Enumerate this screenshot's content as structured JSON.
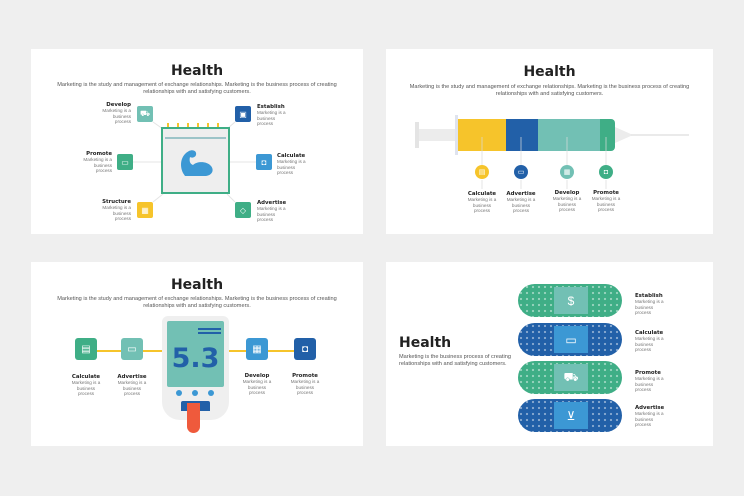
{
  "colors": {
    "green": "#3fae86",
    "teal": "#72c0b4",
    "blue": "#2260a8",
    "lightblue": "#3c98d4",
    "yellow": "#f6c42b",
    "red": "#ef5a3c"
  },
  "slide1": {
    "title": "Health",
    "desc": "Marketing is the study and management of exchange relationships. Marketing is the business process of creating relationships with and satisfying customers.",
    "items": [
      {
        "label": "Develop",
        "text": "Marketing is a business process",
        "icon": "cart-icon"
      },
      {
        "label": "Establish",
        "text": "Marketing is a business process",
        "icon": "wallet-icon"
      },
      {
        "label": "Promote",
        "text": "Marketing is a business process",
        "icon": "money-icon"
      },
      {
        "label": "Calculate",
        "text": "Marketing is a business process",
        "icon": "bag-icon"
      },
      {
        "label": "Structure",
        "text": "Marketing is a business process",
        "icon": "calendar-icon"
      },
      {
        "label": "Advertise",
        "text": "Marketing is a business process",
        "icon": "tag-icon"
      }
    ]
  },
  "slide2": {
    "title": "Health",
    "desc": "Marketing is the study and management of exchange relationships. Marketing is the business process of creating relationships with and satisfying customers.",
    "items": [
      {
        "label": "Calculate",
        "text": "Marketing is a business process",
        "icon": "receipt-icon"
      },
      {
        "label": "Advertise",
        "text": "Marketing is a business process",
        "icon": "truck-icon"
      },
      {
        "label": "Develop",
        "text": "Marketing is a business process",
        "icon": "calendar-icon"
      },
      {
        "label": "Promote",
        "text": "Marketing is a business process",
        "icon": "bag-icon"
      }
    ]
  },
  "slide3": {
    "title": "Health",
    "desc": "Marketing is the study and management of exchange relationships. Marketing is the business process of creating relationships with and satisfying customers.",
    "reading": "5.3",
    "items": [
      {
        "label": "Calculate",
        "text": "Marketing is a business process",
        "icon": "receipt-icon"
      },
      {
        "label": "Advertise",
        "text": "Marketing is a business process",
        "icon": "truck-icon"
      },
      {
        "label": "Develop",
        "text": "Marketing is a business process",
        "icon": "calendar-icon"
      },
      {
        "label": "Promote",
        "text": "Marketing is a business process",
        "icon": "bag-icon"
      }
    ]
  },
  "slide4": {
    "title": "Health",
    "desc": "Marketing is the business process of creating relationships with and satisfying customers.",
    "items": [
      {
        "label": "Establish",
        "text": "Marketing is a business process",
        "icon": "dollar-bill-icon"
      },
      {
        "label": "Calculate",
        "text": "Marketing is a business process",
        "icon": "credit-card-icon"
      },
      {
        "label": "Promote",
        "text": "Marketing is a business process",
        "icon": "truck-icon"
      },
      {
        "label": "Advertise",
        "text": "Marketing is a business process",
        "icon": "cart-icon"
      }
    ]
  }
}
